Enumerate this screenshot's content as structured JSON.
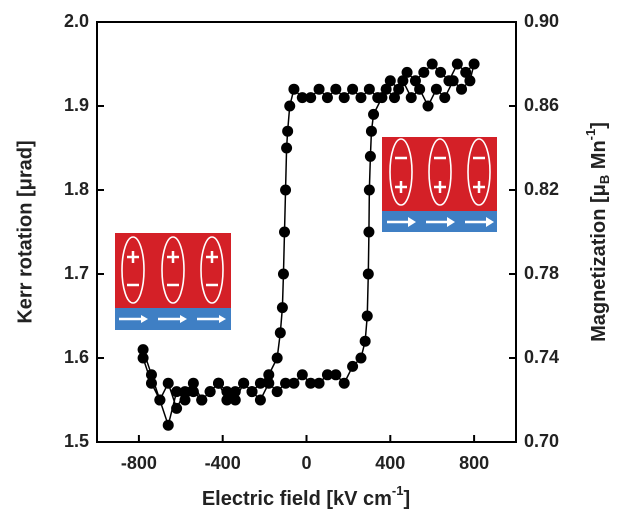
{
  "chart_data": {
    "type": "scatter",
    "xlabel": [
      "Electric field [kV cm",
      "-1",
      "]"
    ],
    "ylabel": "Kerr rotation [μrad]",
    "y2label": [
      "Magnetization [μ",
      "B",
      " Mn",
      "-1",
      "]"
    ],
    "xlim": [
      -1000,
      1000
    ],
    "xticks": [
      -800,
      -400,
      0,
      400,
      800
    ],
    "ylim": [
      1.5,
      2.0
    ],
    "yticks": [
      {
        "value": 1.5,
        "label": "1.5"
      },
      1.6,
      1.7,
      1.8,
      1.9,
      {
        "value": 2.0,
        "label": "2.0"
      }
    ],
    "y2lim": [
      0.7,
      0.9
    ],
    "y2ticks": [
      {
        "value": 0.7,
        "label": "0.70"
      },
      0.74,
      0.78,
      0.82,
      0.86,
      {
        "value": 0.9,
        "label": "0.90"
      }
    ],
    "series": [
      {
        "color": "#000000",
        "x": [
          -780,
          -740,
          -700,
          -660,
          -620,
          -580,
          -540,
          -500,
          -460,
          -420,
          -380,
          -340,
          -300,
          -260,
          -220,
          -180,
          -140,
          -100,
          -60,
          -20,
          20,
          60,
          100,
          140,
          180,
          220,
          260,
          280,
          290,
          295,
          298,
          300,
          305,
          310,
          320,
          360,
          400,
          440,
          480,
          520,
          560,
          600,
          640,
          680,
          720,
          760,
          800,
          780,
          740,
          700,
          660,
          620,
          580,
          540,
          500,
          460,
          420,
          380,
          340,
          300,
          260,
          220,
          180,
          140,
          100,
          60,
          20,
          -20,
          -60,
          -80,
          -90,
          -95,
          -100,
          -105,
          -110,
          -115,
          -125,
          -140,
          -180,
          -220,
          -260,
          -300,
          -340,
          -380,
          -420,
          -460,
          -500,
          -540,
          -580,
          -620,
          -660,
          -700,
          -740,
          -780
        ],
        "values": [
          1.6,
          1.57,
          1.55,
          1.57,
          1.54,
          1.56,
          1.57,
          1.55,
          1.56,
          1.57,
          1.55,
          1.56,
          1.57,
          1.56,
          1.55,
          1.57,
          1.56,
          1.57,
          1.57,
          1.58,
          1.57,
          1.57,
          1.58,
          1.58,
          1.57,
          1.59,
          1.6,
          1.62,
          1.65,
          1.7,
          1.75,
          1.8,
          1.84,
          1.87,
          1.89,
          1.91,
          1.93,
          1.92,
          1.94,
          1.93,
          1.94,
          1.95,
          1.94,
          1.93,
          1.95,
          1.94,
          1.95,
          1.93,
          1.92,
          1.93,
          1.91,
          1.92,
          1.9,
          1.92,
          1.91,
          1.93,
          1.91,
          1.92,
          1.91,
          1.92,
          1.91,
          1.92,
          1.91,
          1.92,
          1.91,
          1.92,
          1.91,
          1.91,
          1.92,
          1.9,
          1.87,
          1.85,
          1.8,
          1.75,
          1.7,
          1.66,
          1.63,
          1.6,
          1.58,
          1.57,
          1.56,
          1.57,
          1.55,
          1.56,
          1.57,
          1.56,
          1.55,
          1.56,
          1.55,
          1.56,
          1.52,
          1.55,
          1.58,
          1.61
        ]
      }
    ]
  }
}
